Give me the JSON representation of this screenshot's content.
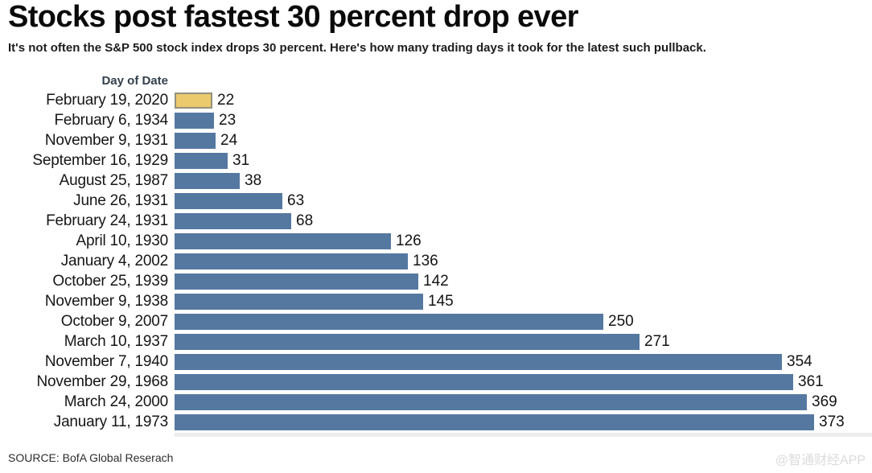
{
  "chart_data": {
    "type": "bar",
    "orientation": "horizontal",
    "title": "Stocks post fastest 30 percent drop ever",
    "subtitle": "It's not often the S&P 500 stock index drops 30 percent. Here's how many trading days it took for the latest such pullback.",
    "axis_header": "Day of Date",
    "categories": [
      "February 19, 2020",
      "February 6, 1934",
      "November 9, 1931",
      "September 16, 1929",
      "August 25, 1987",
      "June 26, 1931",
      "February 24, 1931",
      "April 10, 1930",
      "January 4, 2002",
      "October 25, 1939",
      "November 9, 1938",
      "October 9, 2007",
      "March 10, 1937",
      "November 7, 1940",
      "November 29, 1968",
      "March 24, 2000",
      "January 11, 1973"
    ],
    "values": [
      22,
      23,
      24,
      31,
      38,
      63,
      68,
      126,
      136,
      142,
      145,
      250,
      271,
      354,
      361,
      369,
      373
    ],
    "highlight_index": 0,
    "value_labels": true,
    "legend": "none",
    "grid": false,
    "xlim": [
      0,
      373
    ],
    "colors": {
      "bar": "#5578A1",
      "highlight_fill": "#EBCA6E",
      "highlight_border": "#93907E",
      "baseline": "#ededed"
    }
  },
  "footer": {
    "source": "SOURCE: BofA Global Reserach",
    "watermark": "@智通财经APP"
  }
}
